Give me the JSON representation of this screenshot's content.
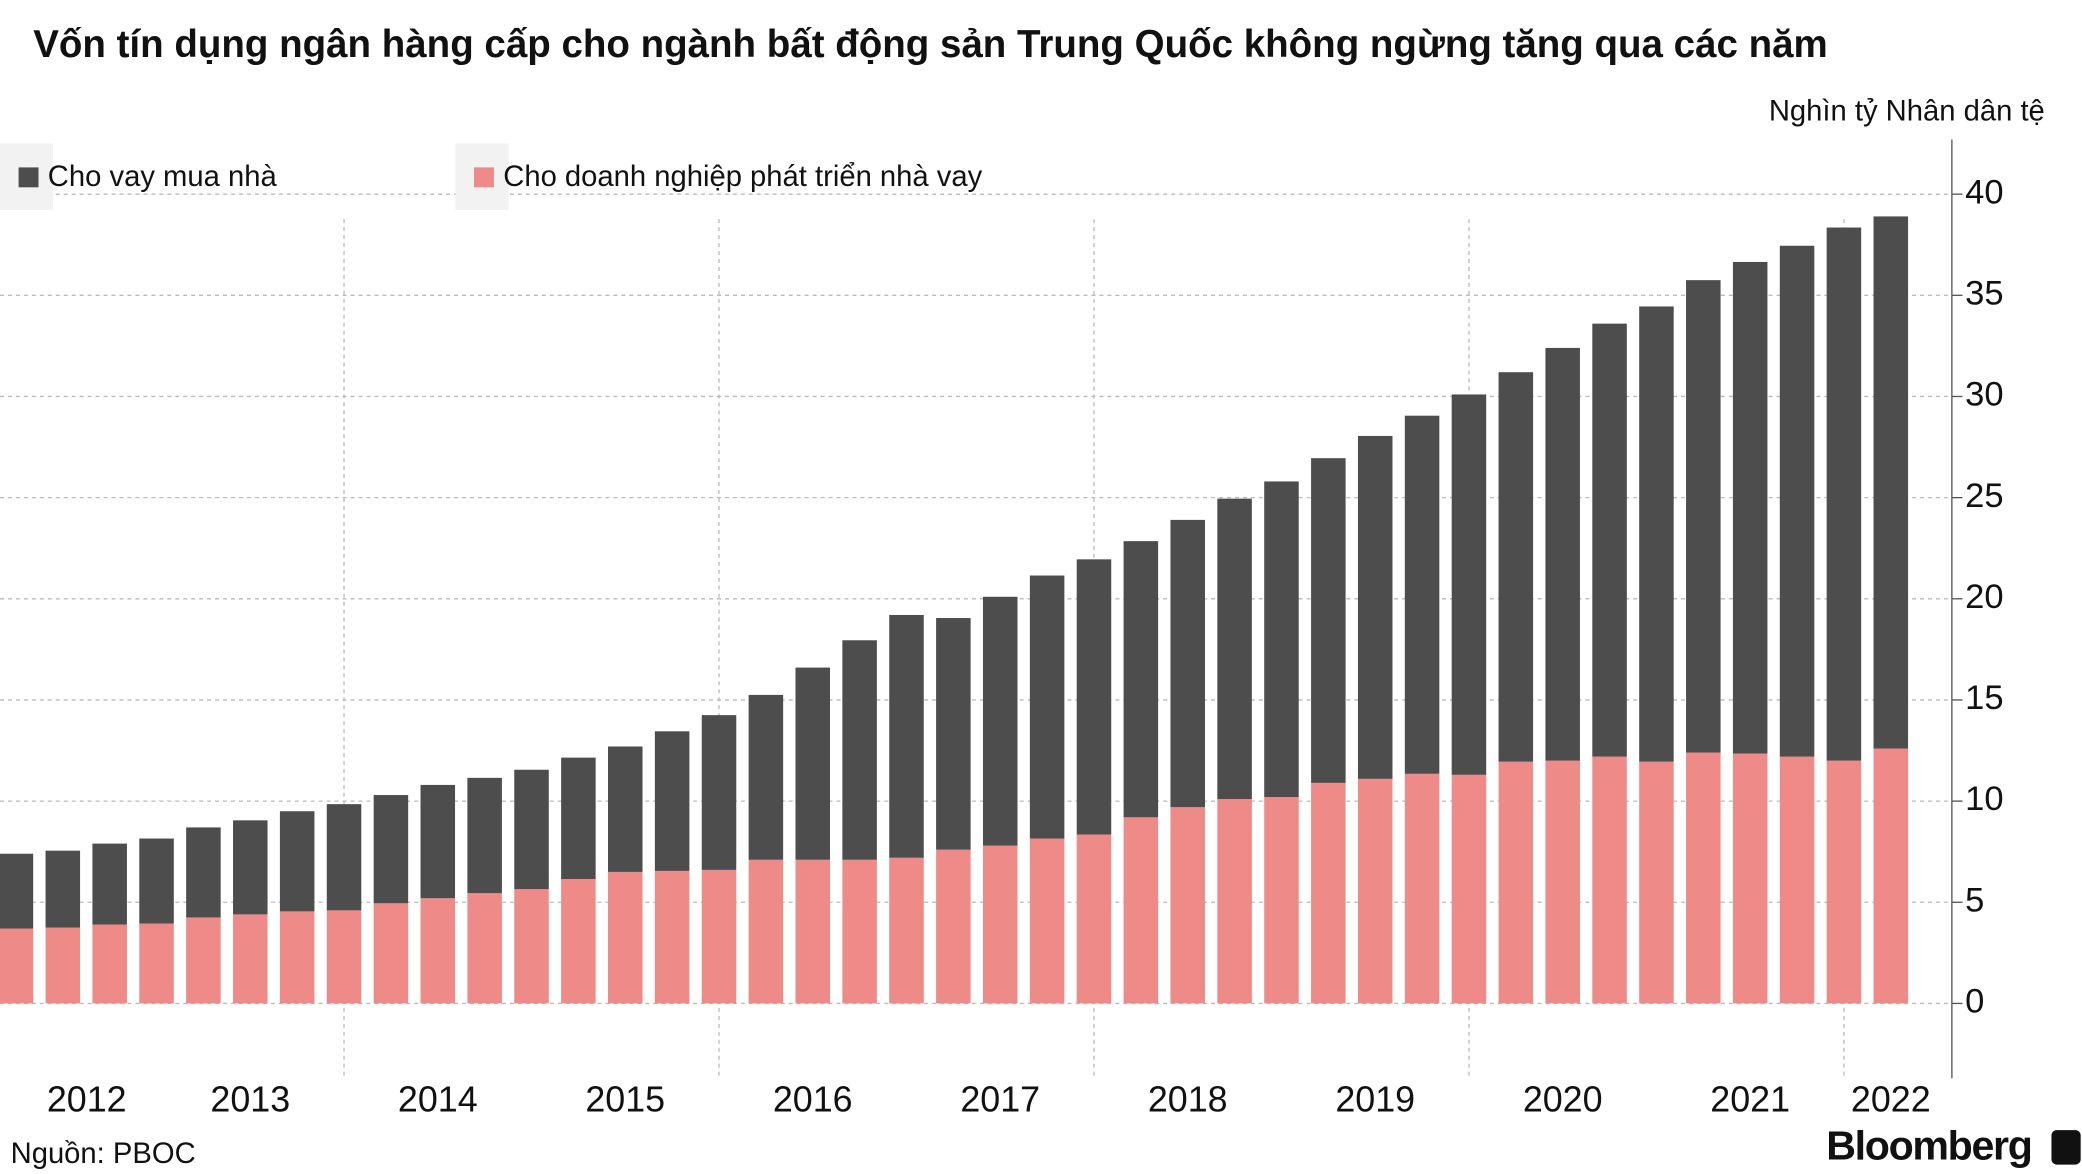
{
  "chart_data": {
    "type": "stacked_bar",
    "title": "Vốn tín dụng ngân hàng cấp cho ngành bất động sản Trung Quốc không ngừng tăng qua các năm",
    "y_axis_label": "Nghìn tỷ Nhân dân tệ",
    "source": "Nguồn: PBOC",
    "brand": "Bloomberg",
    "categories": [
      null,
      "2012",
      null,
      null,
      null,
      "2013",
      null,
      null,
      null,
      "2014",
      null,
      null,
      null,
      "2015",
      null,
      null,
      null,
      "2016",
      null,
      null,
      null,
      "2017",
      null,
      null,
      null,
      "2018",
      null,
      null,
      null,
      "2019",
      null,
      null,
      null,
      "2020",
      null,
      null,
      null,
      "2021",
      null,
      null,
      "2022"
    ],
    "series": [
      {
        "name": "Cho vay mua nhà",
        "color": "#4d4d4d",
        "values": [
          3.7,
          3.8,
          4.0,
          4.2,
          4.45,
          4.65,
          4.95,
          5.25,
          5.35,
          5.6,
          5.7,
          5.9,
          6.0,
          6.2,
          6.9,
          7.65,
          8.15,
          9.5,
          10.85,
          12.0,
          11.45,
          12.3,
          13.0,
          13.6,
          13.65,
          14.2,
          14.85,
          15.6,
          16.05,
          16.95,
          17.7,
          18.8,
          19.25,
          20.4,
          21.4,
          22.5,
          23.35,
          24.3,
          25.25,
          26.35,
          26.3
        ]
      },
      {
        "name": "Cho doanh nghiệp phát triển nhà vay",
        "color": "#ee8a87",
        "values": [
          3.7,
          3.75,
          3.9,
          3.95,
          4.25,
          4.4,
          4.55,
          4.6,
          4.95,
          5.2,
          5.45,
          5.65,
          6.15,
          6.5,
          6.55,
          6.6,
          7.1,
          7.1,
          7.1,
          7.2,
          7.6,
          7.8,
          8.15,
          8.35,
          9.2,
          9.7,
          10.1,
          10.2,
          10.9,
          11.1,
          11.35,
          11.3,
          11.95,
          12.0,
          12.2,
          11.95,
          12.4,
          12.35,
          12.2,
          12.0,
          12.6
        ]
      }
    ],
    "ylim": [
      -3.7,
      42.7
    ],
    "yticks": [
      0,
      5,
      10,
      15,
      20,
      25,
      30,
      35,
      40
    ],
    "grid": true,
    "y_axis_side": "right"
  }
}
